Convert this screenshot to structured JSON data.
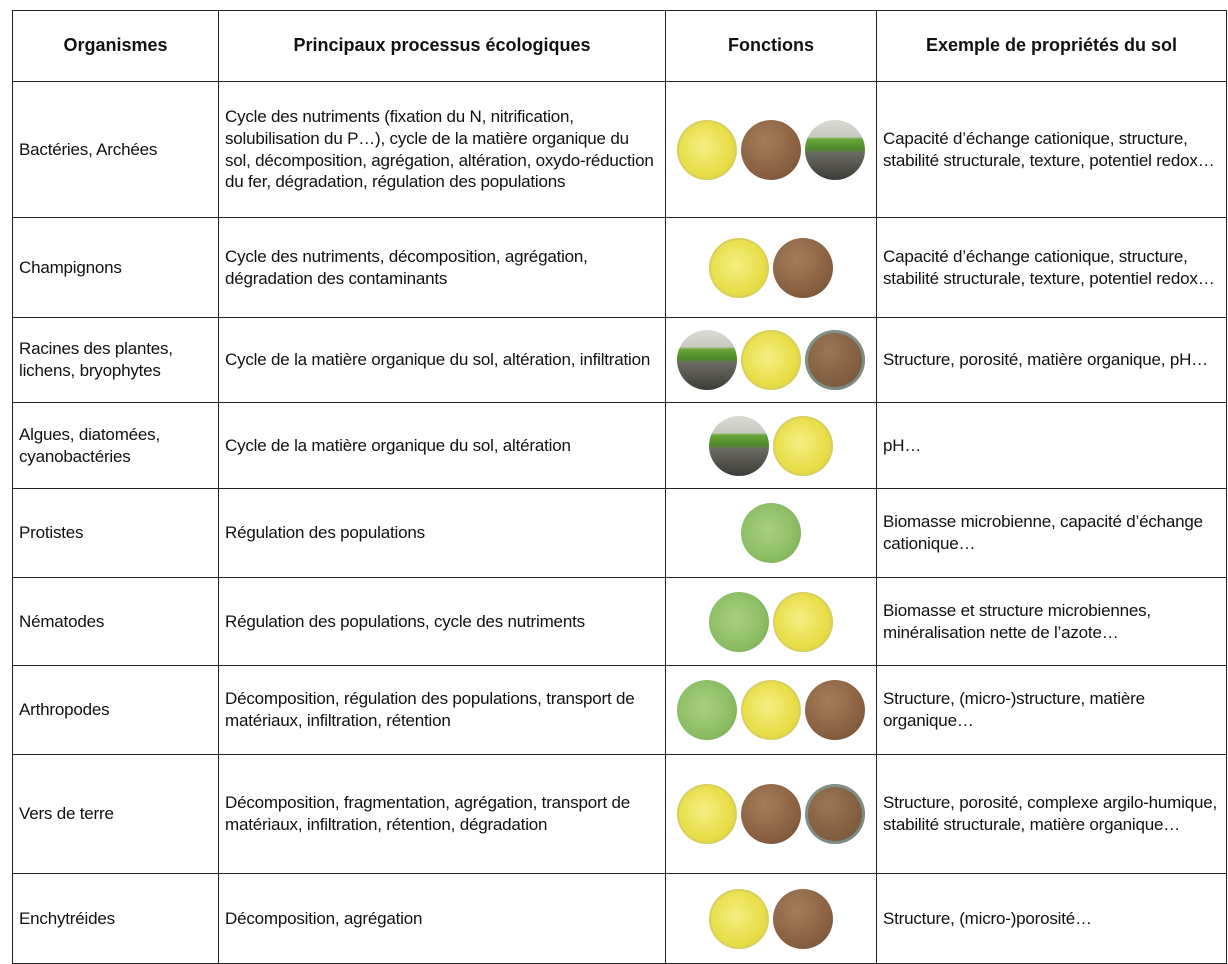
{
  "table": {
    "columns": [
      "Organismes",
      "Principaux processus écologiques",
      "Fonctions",
      "Exemple de propriétés du sol"
    ],
    "rows": [
      {
        "organism": "Bactéries, Archées",
        "processes": "Cycle des nutriments (fixation du N, nitrification, solubilisation du P…), cycle de la matière organique du sol, décomposition, agrégation, altération, oxydo-réduction du fer, dégradation, régulation des populations",
        "properties": "Capacité d’échange cationique, structure, stabilité structurale, texture, potentiel redox…"
      },
      {
        "organism": "Champignons",
        "processes": "Cycle des nutriments, décomposition, agrégation, dégradation des contaminants",
        "properties": "Capacité d’échange cationique, structure, stabilité structurale, texture, potentiel redox…"
      },
      {
        "organism": "Racines des plantes, lichens, bryophytes",
        "processes": "Cycle de la matière organique du sol, altération, infiltration",
        "properties": "Structure, porosité, matière organique, pH…"
      },
      {
        "organism": "Algues, diatomées, cyanobactéries",
        "processes": "Cycle de la matière organique du sol, altération",
        "properties": "pH…"
      },
      {
        "organism": "Protistes",
        "processes": "Régulation des populations",
        "properties": "Biomasse microbienne, capacité d’échange cationique…"
      },
      {
        "organism": "Nématodes",
        "processes": "Régulation des populations, cycle des nutriments",
        "properties": "Biomasse et structure microbiennes, minéralisation nette de l’azote…"
      },
      {
        "organism": "Arthropodes",
        "processes": "Décomposition, régulation des populations, transport de matériaux, infiltration, rétention",
        "properties": "Structure, (micro-)structure, matière organique…"
      },
      {
        "organism": "Vers de terre",
        "processes": "Décomposition, fragmentation, agrégation, transport de matériaux, infiltration, rétention, dégradation",
        "properties": "Structure, porosité, complexe argilo-humique, stabilité structurale, matière organique…"
      },
      {
        "organism": "Enchytréides",
        "processes": "Décomposition, agrégation",
        "properties": "Structure, (micro-)porosité…"
      }
    ]
  }
}
